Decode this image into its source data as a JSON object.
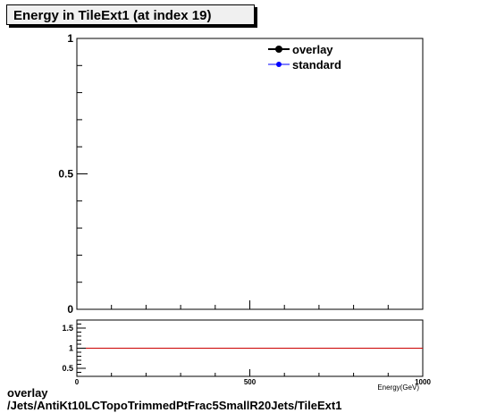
{
  "title": "Energy in TileExt1 (at index 19)",
  "footer": {
    "line1": "overlay",
    "line2": "/Jets/AntiKt10LCTopoTrimmedPtFrac5SmallR20Jets/TileExt1"
  },
  "chart_data": [
    {
      "type": "line",
      "title": "Energy in TileExt1 (at index 19)",
      "xlabel": "",
      "ylabel": "",
      "xlim": [
        0,
        1000
      ],
      "ylim": [
        0,
        1
      ],
      "y_ticks": [
        {
          "value": 0,
          "label": "0"
        },
        {
          "value": 0.5,
          "label": "0.5"
        },
        {
          "value": 1,
          "label": "1"
        }
      ],
      "legend": {
        "placement": "top-right"
      },
      "series": [
        {
          "name": "overlay",
          "color": "#000000",
          "marker": "circle",
          "x": [],
          "y": []
        },
        {
          "name": "standard",
          "color": "#0000ff",
          "marker": "circle",
          "x": [],
          "y": []
        }
      ],
      "grid": false
    },
    {
      "type": "line",
      "xlabel": "Energy(GeV)",
      "xlim": [
        0,
        1000
      ],
      "ylim": [
        0.3,
        1.7
      ],
      "x_ticks": [
        {
          "value": 0,
          "label": "0"
        },
        {
          "value": 500,
          "label": "500"
        },
        {
          "value": 1000,
          "label": "1000"
        }
      ],
      "y_ticks": [
        {
          "value": 0.5,
          "label": "0.5"
        },
        {
          "value": 1,
          "label": "1"
        },
        {
          "value": 1.5,
          "label": "1.5"
        }
      ],
      "reference_line": {
        "y": 1,
        "color": "#cc0000"
      },
      "grid": false
    }
  ]
}
